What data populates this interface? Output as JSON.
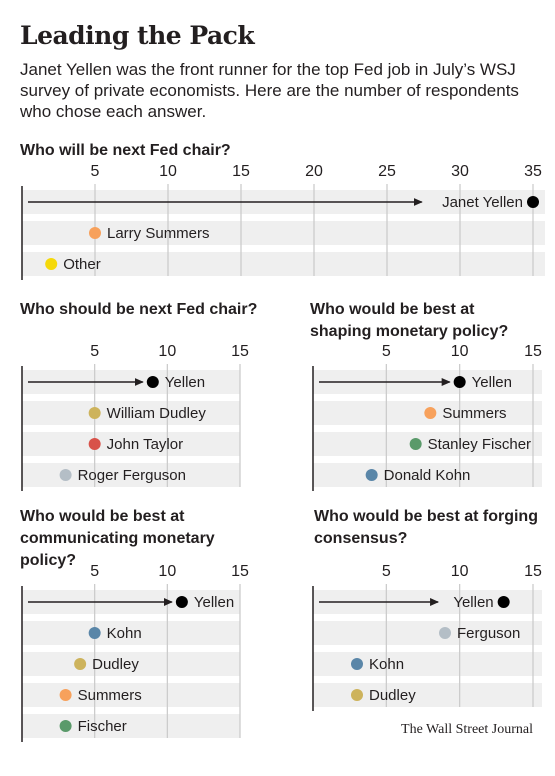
{
  "header": {
    "title": "Leading the Pack",
    "subtitle": "Janet Yellen was the front runner for the top Fed job in July’s WSJ survey of private economists. Here are the number of respondents who chose each answer."
  },
  "source": "The Wall Street Journal",
  "colors": {
    "background": "#ffffff",
    "row_band": "#efefef",
    "grid": "#c9c9c9",
    "axis": "#231f20",
    "Yellen": "#000000",
    "Summers": "#f7a15c",
    "Other": "#f5d90a",
    "Dudley": "#cdb35c",
    "Taylor": "#d8524a",
    "Ferguson": "#b4bec6",
    "Fischer": "#5a9a6a",
    "Kohn": "#5a86a8"
  },
  "chart_data": [
    {
      "id": "next-fed-chair",
      "type": "scatter",
      "title": "Who will be next Fed chair?",
      "xlim": [
        0,
        35
      ],
      "xticks": [
        5,
        10,
        15,
        20,
        25,
        30,
        35
      ],
      "arrow_label": "Janet Yellen",
      "points": [
        {
          "label": "Janet Yellen",
          "value": 35,
          "color": "#000000"
        },
        {
          "label": "Larry Summers",
          "value": 5,
          "color": "#f7a15c"
        },
        {
          "label": "Other",
          "value": 2,
          "color": "#f5d90a"
        }
      ]
    },
    {
      "id": "should-be-chair",
      "type": "scatter",
      "title": "Who should be next Fed chair?",
      "xlim": [
        0,
        15
      ],
      "xticks": [
        5,
        10,
        15
      ],
      "arrow_label": "Yellen",
      "points": [
        {
          "label": "Yellen",
          "value": 9,
          "color": "#000000"
        },
        {
          "label": "William Dudley",
          "value": 5,
          "color": "#cdb35c"
        },
        {
          "label": "John Taylor",
          "value": 5,
          "color": "#d8524a"
        },
        {
          "label": "Roger Ferguson",
          "value": 3,
          "color": "#b4bec6"
        }
      ]
    },
    {
      "id": "shaping-policy",
      "type": "scatter",
      "title": "Who would be best at shaping monetary policy?",
      "xlim": [
        0,
        15
      ],
      "xticks": [
        5,
        10,
        15
      ],
      "arrow_label": "Yellen",
      "points": [
        {
          "label": "Yellen",
          "value": 10,
          "color": "#000000"
        },
        {
          "label": "Summers",
          "value": 8,
          "color": "#f7a15c"
        },
        {
          "label": "Stanley Fischer",
          "value": 7,
          "color": "#5a9a6a"
        },
        {
          "label": "Donald Kohn",
          "value": 4,
          "color": "#5a86a8"
        }
      ]
    },
    {
      "id": "communicating-policy",
      "type": "scatter",
      "title": "Who would be best at communicating monetary policy?",
      "xlim": [
        0,
        15
      ],
      "xticks": [
        5,
        10,
        15
      ],
      "arrow_label": "Yellen",
      "points": [
        {
          "label": "Yellen",
          "value": 11,
          "color": "#000000"
        },
        {
          "label": "Kohn",
          "value": 5,
          "color": "#5a86a8"
        },
        {
          "label": "Dudley",
          "value": 4,
          "color": "#cdb35c"
        },
        {
          "label": "Summers",
          "value": 3,
          "color": "#f7a15c"
        },
        {
          "label": "Fischer",
          "value": 3,
          "color": "#5a9a6a"
        }
      ]
    },
    {
      "id": "forging-consensus",
      "type": "scatter",
      "title": "Who would be best at forging consensus?",
      "xlim": [
        0,
        15
      ],
      "xticks": [
        5,
        10,
        15
      ],
      "arrow_label": "Yellen",
      "points": [
        {
          "label": "Yellen",
          "value": 13,
          "color": "#000000"
        },
        {
          "label": "Ferguson",
          "value": 9,
          "color": "#b4bec6"
        },
        {
          "label": "Kohn",
          "value": 3,
          "color": "#5a86a8"
        },
        {
          "label": "Dudley",
          "value": 3,
          "color": "#cdb35c"
        }
      ]
    }
  ]
}
